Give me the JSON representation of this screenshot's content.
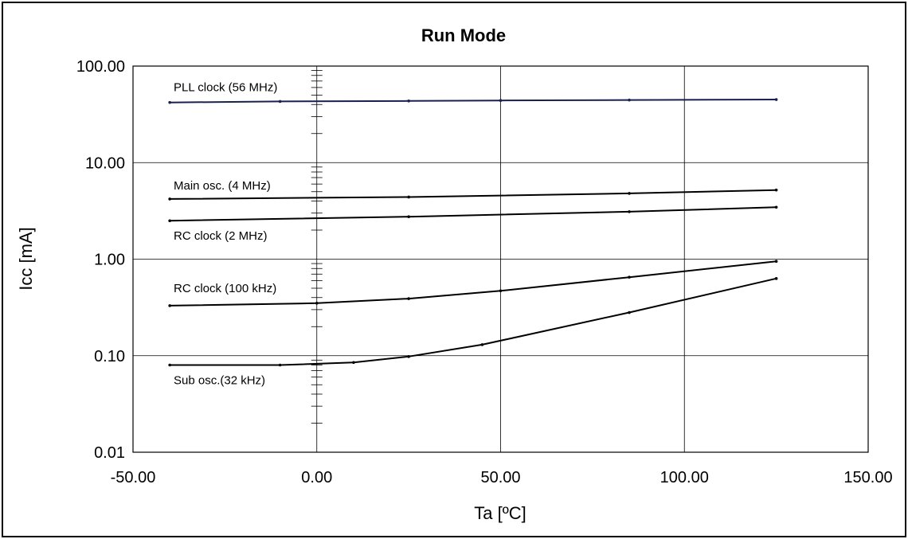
{
  "chart_data": {
    "type": "line",
    "title": "Run Mode",
    "xlabel": "Ta [ºC]",
    "ylabel": "Icc [mA]",
    "xlim": [
      -50,
      150
    ],
    "ylim": [
      0.01,
      100
    ],
    "y_scale": "log",
    "grid": true,
    "x_ticks": [
      "-50.00",
      "0.00",
      "50.00",
      "100.00",
      "150.00"
    ],
    "x_tick_values": [
      -50,
      0,
      50,
      100,
      150
    ],
    "y_ticks": [
      "0.01",
      "0.10",
      "1.00",
      "10.00",
      "100.00"
    ],
    "y_tick_values": [
      0.01,
      0.1,
      1,
      10,
      100
    ],
    "series": [
      {
        "name": "PLL clock (56 MHz)",
        "color": "#1a2050",
        "x": [
          -40,
          -10,
          25,
          50,
          85,
          125
        ],
        "values": [
          42,
          43,
          43.5,
          44,
          44.5,
          45
        ]
      },
      {
        "name": "Main osc. (4 MHz)",
        "color": "#000000",
        "x": [
          -40,
          25,
          85,
          125
        ],
        "values": [
          4.2,
          4.4,
          4.8,
          5.2
        ]
      },
      {
        "name": "RC clock (2 MHz)",
        "color": "#000000",
        "x": [
          -40,
          25,
          85,
          125
        ],
        "values": [
          2.5,
          2.75,
          3.1,
          3.45
        ]
      },
      {
        "name": "RC clock (100 kHz)",
        "color": "#000000",
        "x": [
          -40,
          0,
          25,
          50,
          85,
          125
        ],
        "values": [
          0.33,
          0.35,
          0.39,
          0.47,
          0.65,
          0.95
        ]
      },
      {
        "name": "Sub osc.(32 kHz)",
        "color": "#000000",
        "x": [
          -40,
          -10,
          10,
          25,
          45,
          85,
          125
        ],
        "values": [
          0.08,
          0.08,
          0.085,
          0.098,
          0.13,
          0.28,
          0.63
        ]
      }
    ]
  }
}
